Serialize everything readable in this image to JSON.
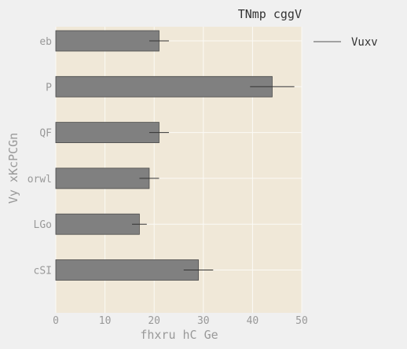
{
  "chart_data": {
    "type": "bar",
    "orientation": "horizontal",
    "title": "TNmp cggV",
    "xlabel": "fhxru hC Ge",
    "ylabel": "Vy xKcPCGn",
    "categories": [
      "eb",
      "P",
      "QF",
      "orwl",
      "LGo",
      "cSI"
    ],
    "series": [
      {
        "name": "Vuxv",
        "values": [
          21,
          44,
          21,
          19,
          17,
          29
        ],
        "errors": [
          2,
          4.5,
          2,
          2,
          1.5,
          3
        ]
      }
    ],
    "xlim": [
      0,
      50
    ],
    "xticks": [
      "0",
      "10",
      "20",
      "30",
      "40",
      "50"
    ],
    "grid": true,
    "legend": "outside-right",
    "colors": {
      "figure_bg": "#f0f0f0",
      "plot_bg": "#f0e8d8",
      "bar_fill": "#808080",
      "bar_edge": "#4a4a4a",
      "grid": "#fbfaf6",
      "tick_text": "#999999",
      "title_text": "#333333"
    }
  }
}
